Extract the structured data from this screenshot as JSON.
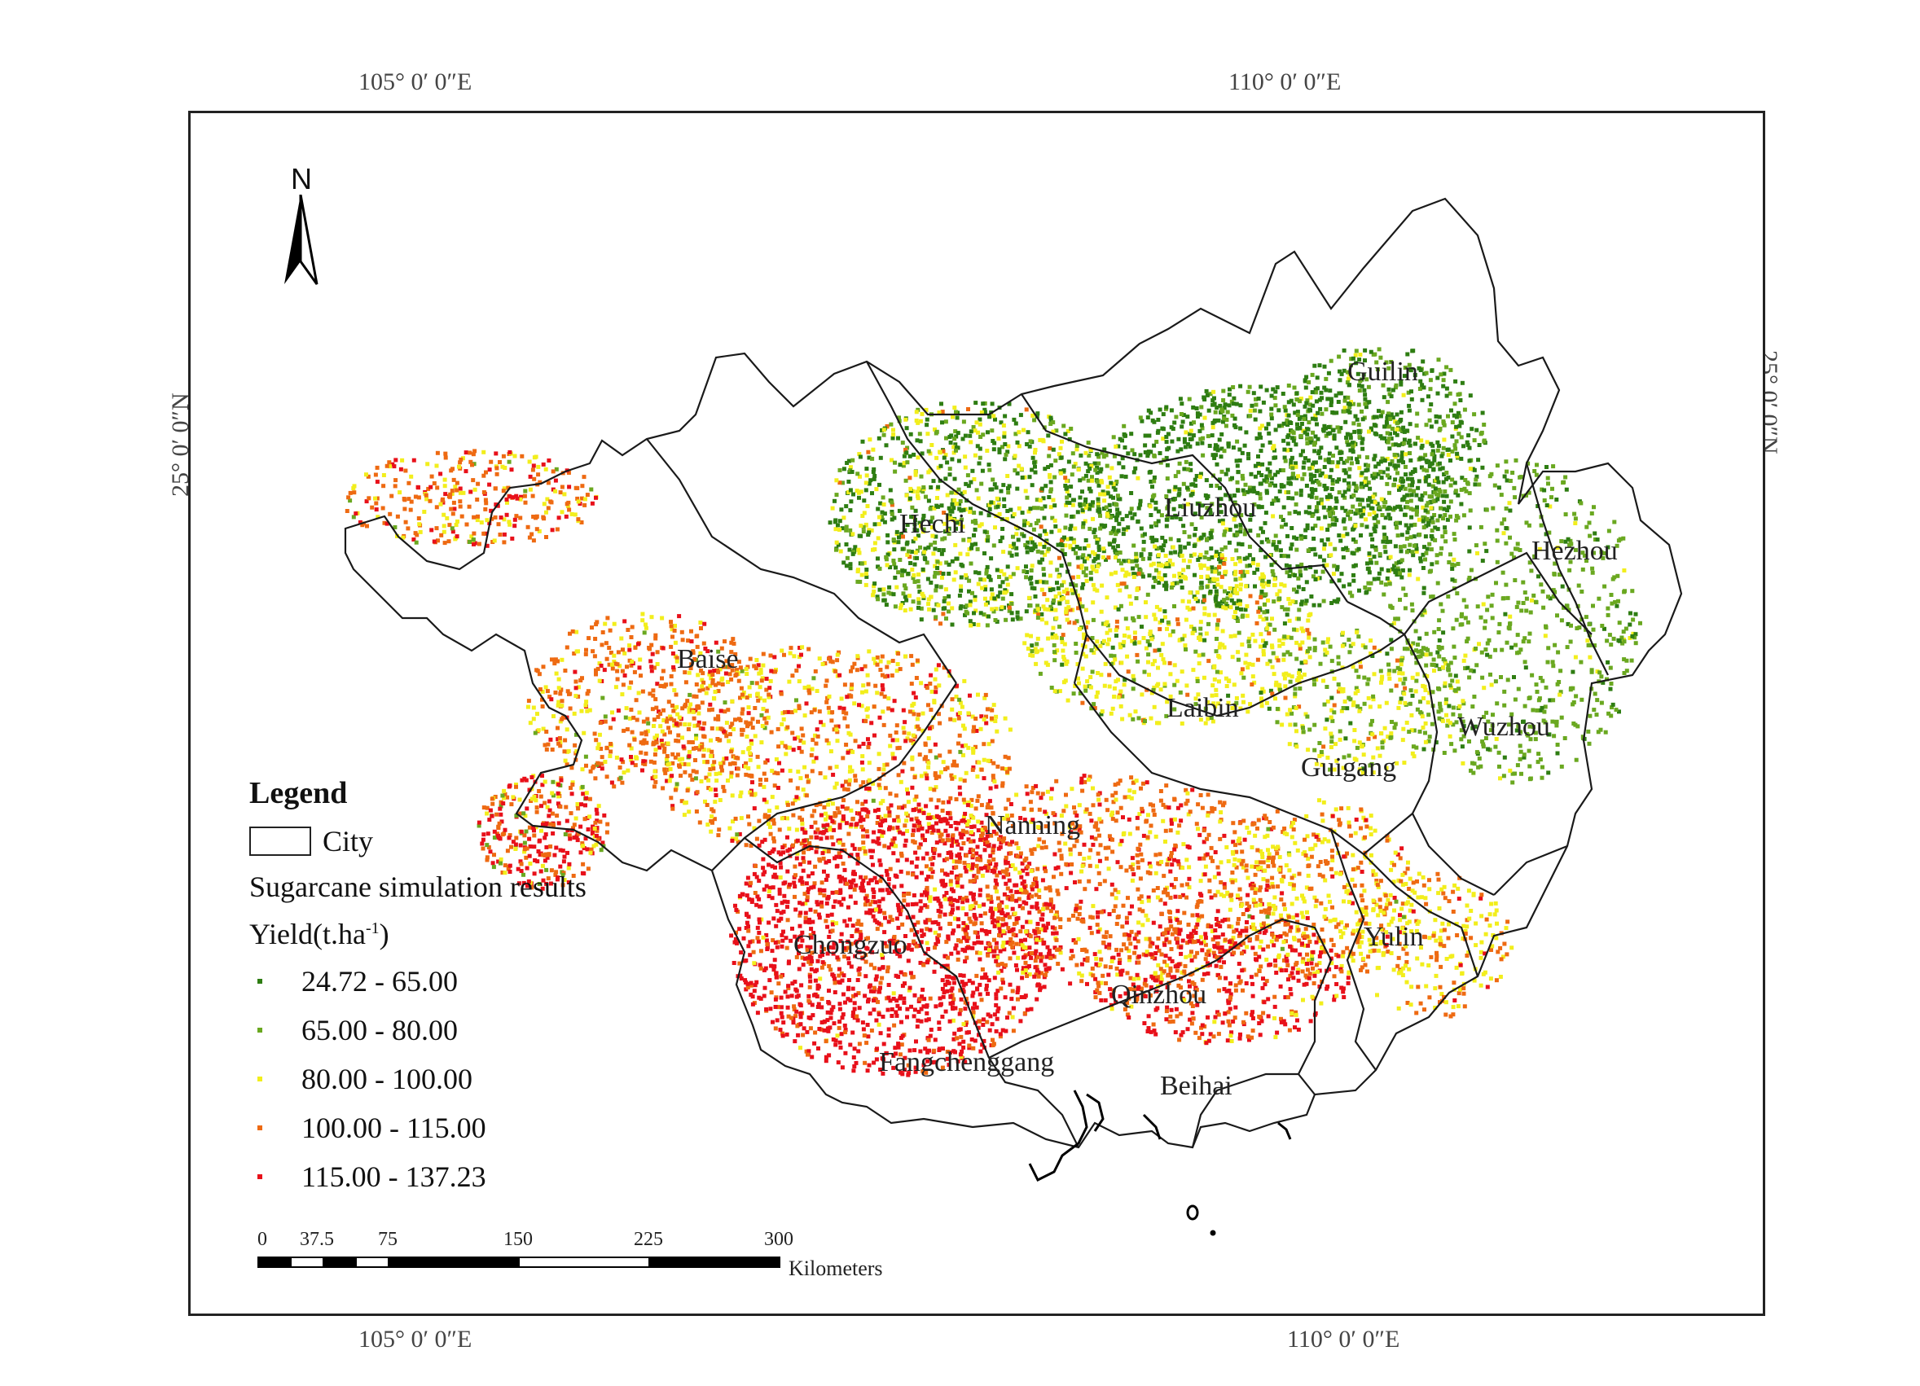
{
  "map": {
    "graticule": {
      "top": [
        "105°  0′ 0″E",
        "110°  0′ 0″E"
      ],
      "bottom": [
        "105°  0′ 0″E",
        "110°  0′ 0″E"
      ],
      "left": "25°  0′ 0″N",
      "right": "25°  0′ 0″N"
    },
    "north_arrow": "N",
    "cities": [
      "Guilin",
      "Hechi",
      "Liuzhou",
      "Hezhou",
      "Baise",
      "Laibin",
      "Wuzhou",
      "Guigang",
      "Nanning",
      "Yulin",
      "Chongzuo",
      "Qinzhou",
      "Fangchenggang",
      "Beihai"
    ],
    "legend": {
      "title": "Legend",
      "city_label": "City",
      "layer_title": "Sugarcane simulation results",
      "yield_label_prefix": "Yield(t.ha",
      "yield_label_sup": "-1",
      "yield_label_suffix": ")",
      "classes": [
        {
          "range": "24.72 - 65.00",
          "color": "#2e7d12"
        },
        {
          "range": "65.00 - 80.00",
          "color": "#6aa820"
        },
        {
          "range": "80.00 - 100.00",
          "color": "#f2ee1c"
        },
        {
          "range": "100.00 - 115.00",
          "color": "#ee6a12"
        },
        {
          "range": "115.00 - 137.23",
          "color": "#e8101a"
        }
      ]
    },
    "scalebar": {
      "ticks": [
        "0",
        "37.5",
        "75",
        "150",
        "225",
        "300"
      ],
      "unit": "Kilometers"
    }
  }
}
